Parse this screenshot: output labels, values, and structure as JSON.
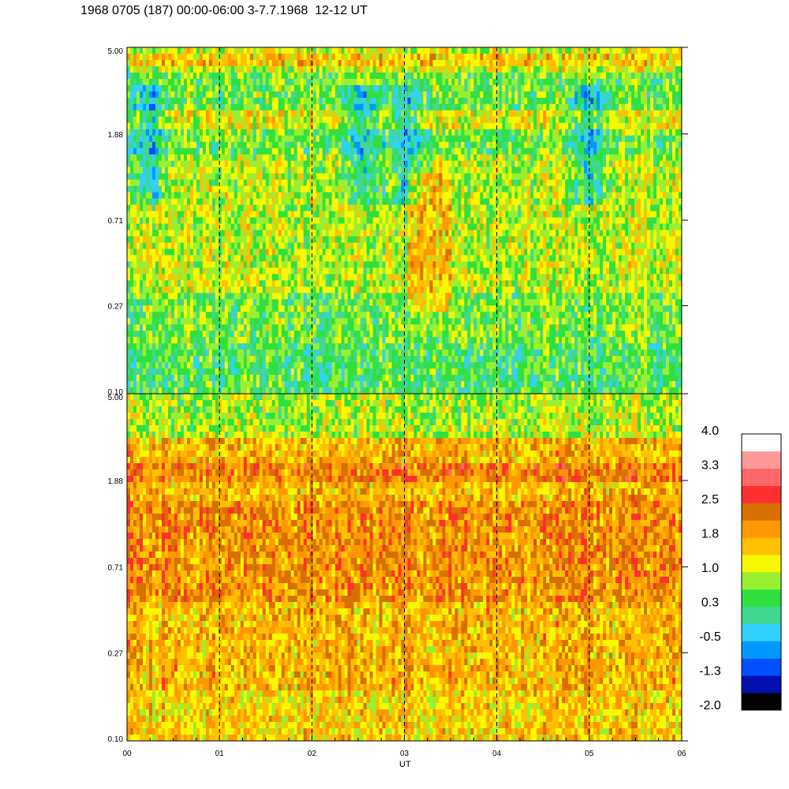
{
  "chart_data": {
    "type": "heatmap",
    "title": "1968 0705 (187) 00:00-06:00 3-7.7.1968  12-12 UT",
    "xlabel": "UT",
    "x_ticks": [
      "00",
      "01",
      "02",
      "03",
      "04",
      "05",
      "06"
    ],
    "x_range": [
      0,
      6
    ],
    "vlines_at": [
      1,
      2,
      3,
      4,
      5
    ],
    "panels": [
      {
        "name": "upper",
        "y_ticks": [
          "5.00",
          "1.88",
          "0.71",
          "0.27",
          "0.10"
        ],
        "y_range": [
          0.1,
          5.0
        ],
        "y_scale": "log",
        "dominant_level": 0.6
      },
      {
        "name": "lower",
        "y_ticks": [
          "5.00",
          "1.88",
          "0.71",
          "0.27",
          "0.10"
        ],
        "y_range": [
          0.1,
          5.0
        ],
        "y_scale": "log",
        "dominant_level": 1.7
      }
    ],
    "colorbar": {
      "ticks": [
        "4.0",
        "3.3",
        "2.5",
        "1.8",
        "1.0",
        "0.3",
        "-0.5",
        "-1.3",
        "-2.0"
      ],
      "range": [
        -2.0,
        4.0
      ],
      "colors": [
        "#000000",
        "#0010b0",
        "#0050ff",
        "#0098ff",
        "#30d0ff",
        "#40d890",
        "#30e040",
        "#98f030",
        "#f8f800",
        "#ffc000",
        "#ff9800",
        "#d87000",
        "#ff3030",
        "#ff6868",
        "#ff9898",
        "#ffffff"
      ]
    }
  }
}
